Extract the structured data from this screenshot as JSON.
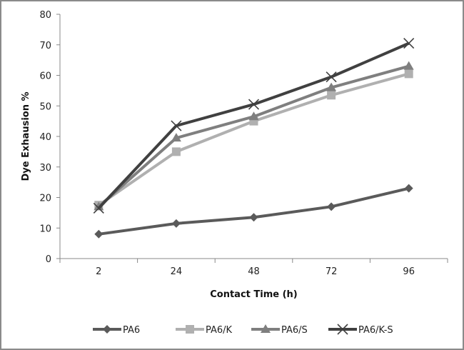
{
  "chart_data": {
    "type": "line",
    "title": "",
    "xlabel": "Contact Time (h)",
    "ylabel": "Dye Exhausion %",
    "categories": [
      "2",
      "24",
      "48",
      "72",
      "96"
    ],
    "ylim": [
      0,
      80
    ],
    "yticks": [
      0,
      10,
      20,
      30,
      40,
      50,
      60,
      70,
      80
    ],
    "grid": false,
    "legend": "bottom",
    "series": [
      {
        "name": "PA6",
        "marker": "diamond",
        "color": "#5a5a5a",
        "values": [
          8,
          11.5,
          13.5,
          17,
          23
        ]
      },
      {
        "name": "PA6/K",
        "marker": "square",
        "color": "#b0b0b0",
        "values": [
          17.5,
          35,
          45,
          53.5,
          60.5
        ]
      },
      {
        "name": "PA6/S",
        "marker": "triangle",
        "color": "#7f7f7f",
        "values": [
          17,
          39.5,
          46.5,
          56,
          63
        ]
      },
      {
        "name": "PA6/K-S",
        "marker": "x",
        "color": "#404040",
        "values": [
          16.5,
          43.5,
          50.5,
          59.5,
          70.5
        ]
      }
    ]
  }
}
